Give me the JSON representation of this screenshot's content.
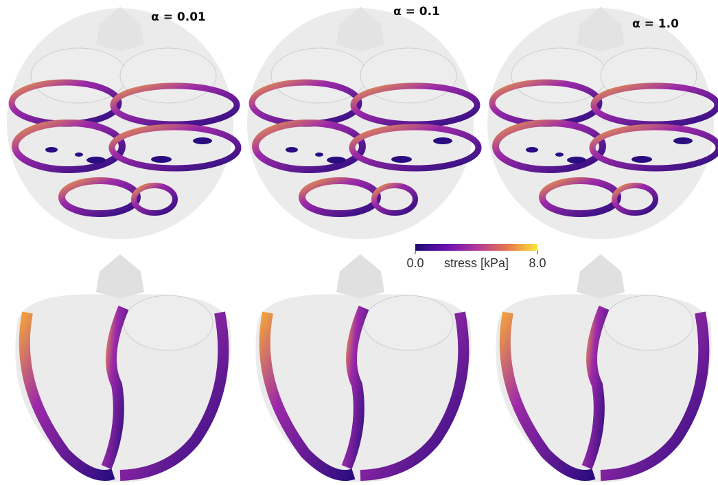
{
  "panels": [
    {
      "title": "α = 0.01"
    },
    {
      "title": "α = 0.1"
    },
    {
      "title": "α = 1.0"
    }
  ],
  "colorbar": {
    "label": "stress [kPa]",
    "lim": [
      0,
      8
    ],
    "ticks": [
      {
        "value": 0,
        "label": "0.0"
      },
      {
        "value": 8,
        "label": "8.0"
      }
    ],
    "colors": [
      "#1c0c72",
      "#6a0fb0",
      "#b03a9c",
      "#e8744e",
      "#f8e83a"
    ]
  }
}
